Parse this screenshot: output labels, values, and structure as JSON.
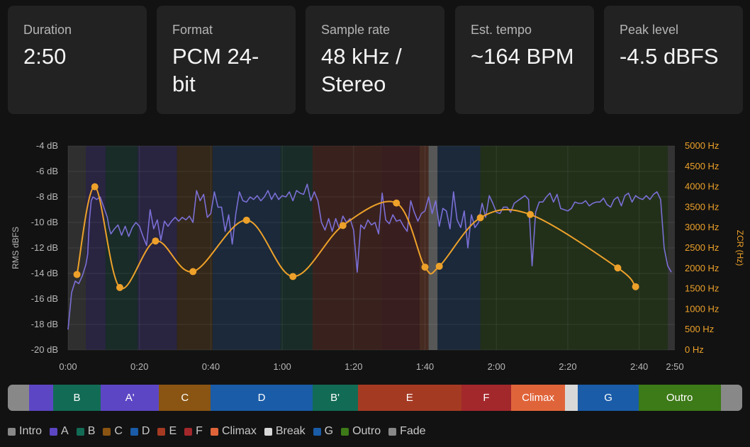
{
  "stats": [
    {
      "label": "Duration",
      "value": "2:50"
    },
    {
      "label": "Format",
      "value": "PCM 24-bit"
    },
    {
      "label": "Sample rate",
      "value": "48 kHz / Stereo"
    },
    {
      "label": "Est. tempo",
      "value": "~164 BPM"
    },
    {
      "label": "Peak level",
      "value": "-4.5 dBFS"
    }
  ],
  "chart_data": {
    "type": "line",
    "x_unit": "seconds",
    "x_range": [
      0,
      170
    ],
    "x_tick_labels": [
      "0:00",
      "0:20",
      "0:40",
      "1:00",
      "1:20",
      "1:40",
      "2:00",
      "2:20",
      "2:40",
      "2:50"
    ],
    "y_left": {
      "label": "RMS dBFS",
      "range": [
        -20,
        -4
      ],
      "tick_labels": [
        "-4 dB",
        "-6 dB",
        "-8 dB",
        "-10 dB",
        "-12 dB",
        "-14 dB",
        "-16 dB",
        "-18 dB",
        "-20 dB"
      ]
    },
    "y_right": {
      "label": "ZCR (Hz)",
      "range": [
        0,
        5000
      ],
      "tick_labels": [
        "5000 Hz",
        "4500 Hz",
        "4000 Hz",
        "3500 Hz",
        "3000 Hz",
        "2500 Hz",
        "2000 Hz",
        "1500 Hz",
        "1000 Hz",
        "500 Hz",
        "0 Hz"
      ]
    },
    "grid": true,
    "series": [
      {
        "axis": "left",
        "color": "#7b6fd6",
        "points": [
          [
            0,
            -18.4
          ],
          [
            1,
            -15.5
          ],
          [
            2,
            -14.6
          ],
          [
            3,
            -14.8
          ],
          [
            4,
            -14.2
          ],
          [
            5,
            -13.3
          ],
          [
            5.5,
            -12.5
          ],
          [
            6,
            -9.8
          ],
          [
            6.5,
            -8.3
          ],
          [
            7,
            -8.0
          ],
          [
            8,
            -8.2
          ],
          [
            9,
            -8.0
          ],
          [
            10,
            -8.8
          ],
          [
            11,
            -9.6
          ],
          [
            11.5,
            -10.4
          ],
          [
            12,
            -10.9
          ],
          [
            13,
            -10.5
          ],
          [
            14,
            -10.2
          ],
          [
            15,
            -11.0
          ],
          [
            16,
            -10.3
          ],
          [
            17,
            -11.1
          ],
          [
            18,
            -10.4
          ],
          [
            19,
            -10.0
          ],
          [
            20,
            -10.3
          ],
          [
            21,
            -11.1
          ],
          [
            22,
            -11.8
          ],
          [
            23,
            -9.0
          ],
          [
            24,
            -10.5
          ],
          [
            25,
            -9.8
          ],
          [
            26,
            -11.4
          ],
          [
            27,
            -9.9
          ],
          [
            28,
            -10.3
          ],
          [
            29,
            -9.9
          ],
          [
            30,
            -9.6
          ],
          [
            31,
            -9.9
          ],
          [
            32,
            -9.6
          ],
          [
            33,
            -9.8
          ],
          [
            34,
            -9.5
          ],
          [
            35,
            -10.0
          ],
          [
            36,
            -7.5
          ],
          [
            37,
            -8.3
          ],
          [
            38,
            -7.8
          ],
          [
            39,
            -9.6
          ],
          [
            40,
            -9.3
          ],
          [
            41,
            -7.6
          ],
          [
            42,
            -8.8
          ],
          [
            43,
            -8.8
          ],
          [
            44,
            -10.7
          ],
          [
            45,
            -9.4
          ],
          [
            46,
            -11.7
          ],
          [
            47,
            -9.3
          ],
          [
            48,
            -7.6
          ],
          [
            49,
            -8.3
          ],
          [
            50,
            -8.4
          ],
          [
            51,
            -8.0
          ],
          [
            52,
            -8.2
          ],
          [
            53,
            -7.9
          ],
          [
            54,
            -8.3
          ],
          [
            55,
            -8.0
          ],
          [
            56,
            -7.5
          ],
          [
            57,
            -8.2
          ],
          [
            58,
            -7.7
          ],
          [
            59,
            -8.2
          ],
          [
            60,
            -7.9
          ],
          [
            61,
            -8.0
          ],
          [
            62,
            -7.6
          ],
          [
            63,
            -8.3
          ],
          [
            64,
            -7.5
          ],
          [
            65,
            -7.7
          ],
          [
            66,
            -7.8
          ],
          [
            67,
            -7.0
          ],
          [
            68,
            -8.3
          ],
          [
            69,
            -7.6
          ],
          [
            70,
            -8.3
          ],
          [
            71,
            -10.0
          ],
          [
            72,
            -10.6
          ],
          [
            73,
            -9.7
          ],
          [
            74,
            -10.7
          ],
          [
            75,
            -9.7
          ],
          [
            76,
            -10.5
          ],
          [
            77,
            -9.5
          ],
          [
            78,
            -10.0
          ],
          [
            79,
            -9.7
          ],
          [
            80,
            -10.6
          ],
          [
            81,
            -13.9
          ],
          [
            82,
            -10.2
          ],
          [
            83,
            -10.5
          ],
          [
            84,
            -9.8
          ],
          [
            85,
            -10.2
          ],
          [
            86,
            -10.0
          ],
          [
            87,
            -10.9
          ],
          [
            88,
            -7.7
          ],
          [
            89,
            -9.8
          ],
          [
            90,
            -10.1
          ],
          [
            91,
            -9.4
          ],
          [
            92,
            -9.9
          ],
          [
            93,
            -9.8
          ],
          [
            94,
            -10.3
          ],
          [
            95,
            -10.7
          ],
          [
            96,
            -8.3
          ],
          [
            97,
            -9.2
          ],
          [
            98,
            -9.9
          ],
          [
            99,
            -9.3
          ],
          [
            100,
            -9.1
          ],
          [
            101,
            -8.0
          ],
          [
            102,
            -9.3
          ],
          [
            103,
            -8.3
          ],
          [
            104,
            -10.3
          ],
          [
            105,
            -8.9
          ],
          [
            106,
            -9.1
          ],
          [
            107,
            -10.5
          ],
          [
            108,
            -7.6
          ],
          [
            109,
            -9.8
          ],
          [
            110,
            -10.4
          ],
          [
            111,
            -9.1
          ],
          [
            112,
            -12.0
          ],
          [
            113,
            -9.4
          ],
          [
            114,
            -10.4
          ],
          [
            115,
            -10.0
          ],
          [
            116,
            -8.5
          ],
          [
            117,
            -9.6
          ],
          [
            118,
            -7.9
          ],
          [
            119,
            -8.5
          ],
          [
            120,
            -9.2
          ],
          [
            121,
            -9.3
          ],
          [
            122,
            -8.8
          ],
          [
            123,
            -8.8
          ],
          [
            124,
            -9.2
          ],
          [
            125,
            -8.5
          ],
          [
            126,
            -8.3
          ],
          [
            127,
            -8.1
          ],
          [
            128,
            -7.9
          ],
          [
            129,
            -8.2
          ],
          [
            130,
            -13.4
          ],
          [
            131,
            -9.2
          ],
          [
            132,
            -8.4
          ],
          [
            133,
            -8.4
          ],
          [
            134,
            -8.0
          ],
          [
            135,
            -7.7
          ],
          [
            136,
            -8.4
          ],
          [
            137,
            -7.8
          ],
          [
            138,
            -8.9
          ],
          [
            139,
            -9.0
          ],
          [
            140,
            -9.1
          ],
          [
            141,
            -8.9
          ],
          [
            142,
            -8.4
          ],
          [
            143,
            -8.5
          ],
          [
            144,
            -8.5
          ],
          [
            145,
            -8.3
          ],
          [
            146,
            -8.7
          ],
          [
            147,
            -8.5
          ],
          [
            148,
            -8.4
          ],
          [
            149,
            -8.4
          ],
          [
            150,
            -8.1
          ],
          [
            151,
            -8.6
          ],
          [
            152,
            -8.8
          ],
          [
            153,
            -8.2
          ],
          [
            154,
            -8.0
          ],
          [
            155,
            -8.7
          ],
          [
            156,
            -7.9
          ],
          [
            157,
            -7.7
          ],
          [
            158,
            -8.4
          ],
          [
            159,
            -7.9
          ],
          [
            160,
            -8.1
          ],
          [
            161,
            -8.2
          ],
          [
            162,
            -7.9
          ],
          [
            163,
            -8.2
          ],
          [
            164,
            -7.8
          ],
          [
            165,
            -7.6
          ],
          [
            166,
            -8.2
          ],
          [
            167,
            -12.0
          ],
          [
            168,
            -13.4
          ],
          [
            169,
            -13.9
          ]
        ]
      },
      {
        "axis": "right",
        "color": "#eda12a",
        "points": [
          [
            2.5,
            1850
          ],
          [
            7.5,
            4000
          ],
          [
            14.5,
            1530
          ],
          [
            24.5,
            2670
          ],
          [
            35,
            1920
          ],
          [
            50,
            3180
          ],
          [
            63,
            1800
          ],
          [
            77,
            3050
          ],
          [
            92,
            3600
          ],
          [
            100,
            2030
          ],
          [
            104,
            2050
          ],
          [
            115.5,
            3240
          ],
          [
            129.5,
            3320
          ],
          [
            154,
            2010
          ],
          [
            159,
            1550
          ]
        ]
      }
    ],
    "sections": [
      {
        "name": "Intro",
        "start": 0,
        "end": 5,
        "color": "#777777"
      },
      {
        "name": "A",
        "start": 5,
        "end": 10.5,
        "color": "#5d46c4"
      },
      {
        "name": "B",
        "start": 10.5,
        "end": 19.5,
        "color": "#126b55"
      },
      {
        "name": "A'",
        "start": 19.5,
        "end": 30.5,
        "color": "#5d46c4"
      },
      {
        "name": "C",
        "start": 30.5,
        "end": 40.5,
        "color": "#8a5512"
      },
      {
        "name": "D",
        "start": 40.5,
        "end": 59.5,
        "color": "#1a5ca8"
      },
      {
        "name": "B'",
        "start": 59.5,
        "end": 68.5,
        "color": "#126b55"
      },
      {
        "name": "E",
        "start": 68.5,
        "end": 88,
        "color": "#a53a23"
      },
      {
        "name": "F",
        "start": 88,
        "end": 98.5,
        "color": "#a3282c"
      },
      {
        "name": "Climax",
        "start": 98.5,
        "end": 101,
        "color": "#e0643a"
      },
      {
        "name": "Break",
        "start": 101,
        "end": 103.5,
        "color": "#d8d8d8"
      },
      {
        "name": "G",
        "start": 103.5,
        "end": 115.5,
        "color": "#1a5ca8"
      },
      {
        "name": "Outro",
        "start": 115.5,
        "end": 168,
        "color": "#3d7a18"
      },
      {
        "name": "Fade",
        "start": 168,
        "end": 170,
        "color": "#888888"
      }
    ],
    "bar_segments": [
      {
        "label": "",
        "start": 0,
        "end": 5,
        "color": "#888888"
      },
      {
        "label": "",
        "start": 5,
        "end": 10.5,
        "color": "#5d46c4"
      },
      {
        "label": "B",
        "start": 10.5,
        "end": 21.5,
        "color": "#126b55"
      },
      {
        "label": "A'",
        "start": 21.5,
        "end": 35,
        "color": "#5d46c4"
      },
      {
        "label": "C",
        "start": 35,
        "end": 47,
        "color": "#8a5512"
      },
      {
        "label": "D",
        "start": 47,
        "end": 70.5,
        "color": "#1a5ca8"
      },
      {
        "label": "B'",
        "start": 70.5,
        "end": 81,
        "color": "#126b55"
      },
      {
        "label": "E",
        "start": 81,
        "end": 105,
        "color": "#a53a23"
      },
      {
        "label": "F",
        "start": 105,
        "end": 116.5,
        "color": "#a3282c"
      },
      {
        "label": "Climax",
        "start": 116.5,
        "end": 129,
        "color": "#e0643a"
      },
      {
        "label": "",
        "start": 129,
        "end": 132,
        "color": "#d8d8d8"
      },
      {
        "label": "G",
        "start": 132,
        "end": 146,
        "color": "#1a5ca8"
      },
      {
        "label": "Outro",
        "start": 146,
        "end": 165,
        "color": "#3d7a18"
      },
      {
        "label": "",
        "start": 165,
        "end": 170,
        "color": "#888888"
      }
    ]
  },
  "legend": [
    {
      "label": "Intro",
      "color": "#888888"
    },
    {
      "label": "A",
      "color": "#5d46c4"
    },
    {
      "label": "B",
      "color": "#126b55"
    },
    {
      "label": "C",
      "color": "#8a5512"
    },
    {
      "label": "D",
      "color": "#1a5ca8"
    },
    {
      "label": "E",
      "color": "#a53a23"
    },
    {
      "label": "F",
      "color": "#a3282c"
    },
    {
      "label": "Climax",
      "color": "#e0643a"
    },
    {
      "label": "Break",
      "color": "#d8d8d8"
    },
    {
      "label": "G",
      "color": "#1a5ca8"
    },
    {
      "label": "Outro",
      "color": "#3d7a18"
    },
    {
      "label": "Fade",
      "color": "#888888"
    }
  ]
}
